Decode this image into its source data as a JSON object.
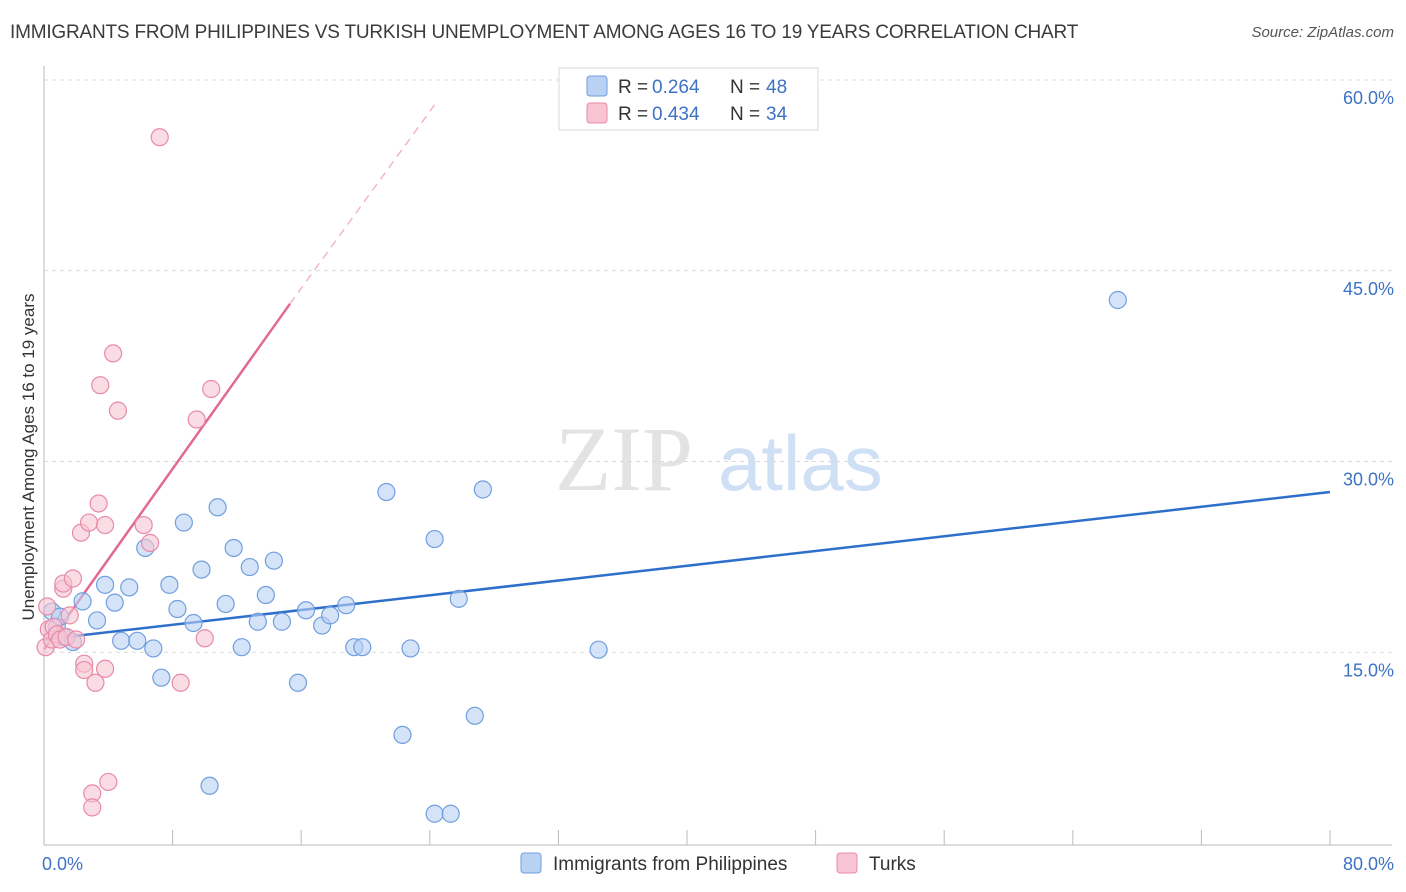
{
  "header": {
    "title": "IMMIGRANTS FROM PHILIPPINES VS TURKISH UNEMPLOYMENT AMONG AGES 16 TO 19 YEARS CORRELATION CHART",
    "source": "Source: ZipAtlas.com"
  },
  "watermark": {
    "zip": "ZIP",
    "atlas": "atlas"
  },
  "colors": {
    "blue_fill": "#b9d1f3",
    "blue_stroke": "#6f9fde",
    "blue_line": "#2f6fcc",
    "pink_fill": "#f7c4d3",
    "pink_stroke": "#e88aa8",
    "pink_line": "#e06a93",
    "tick_text": "#3d72c4",
    "grid": "#d9d9d9"
  },
  "chart_data": {
    "type": "scatter",
    "title": "IMMIGRANTS FROM PHILIPPINES VS TURKISH UNEMPLOYMENT AMONG AGES 16 TO 19 YEARS CORRELATION CHART",
    "xlabel": "",
    "ylabel": "Unemployment Among Ages 16 to 19 years",
    "xlim": [
      0,
      80
    ],
    "ylim": [
      0,
      60
    ],
    "x_tick_labels": [
      "0.0%",
      "80.0%"
    ],
    "y_ticks": [
      15,
      30,
      45,
      60
    ],
    "y_tick_labels": [
      "15.0%",
      "30.0%",
      "45.0%",
      "60.0%"
    ],
    "grid": true,
    "legend": {
      "position": "top-center",
      "entries": [
        {
          "r_label": "R =",
          "r_value": "0.264",
          "n_label": "N =",
          "n_value": "48"
        },
        {
          "r_label": "R =",
          "r_value": "0.434",
          "n_label": "N =",
          "n_value": "34"
        }
      ]
    },
    "bottom_legend": [
      "Immigrants from Philippines",
      "Turks"
    ],
    "series": [
      {
        "name": "Immigrants from Philippines",
        "color": "blue",
        "trend": {
          "x0": 0,
          "y0": 16.0,
          "x1": 80,
          "y1": 27.6,
          "dashed_from": null
        },
        "points": [
          [
            0.5,
            18.2
          ],
          [
            0.8,
            17.0
          ],
          [
            1.0,
            17.8
          ],
          [
            1.2,
            16.2
          ],
          [
            1.8,
            15.8
          ],
          [
            2.4,
            19.0
          ],
          [
            3.3,
            17.5
          ],
          [
            3.8,
            20.3
          ],
          [
            4.4,
            18.9
          ],
          [
            4.8,
            15.9
          ],
          [
            5.3,
            20.1
          ],
          [
            5.8,
            15.9
          ],
          [
            6.3,
            23.2
          ],
          [
            6.8,
            15.3
          ],
          [
            7.3,
            13.0
          ],
          [
            7.8,
            20.3
          ],
          [
            8.3,
            18.4
          ],
          [
            8.7,
            25.2
          ],
          [
            9.3,
            17.3
          ],
          [
            9.8,
            21.5
          ],
          [
            10.3,
            4.5
          ],
          [
            10.8,
            26.4
          ],
          [
            11.3,
            18.8
          ],
          [
            11.8,
            23.2
          ],
          [
            12.3,
            15.4
          ],
          [
            12.8,
            21.7
          ],
          [
            13.3,
            17.4
          ],
          [
            13.8,
            19.5
          ],
          [
            14.3,
            22.2
          ],
          [
            14.8,
            17.4
          ],
          [
            15.8,
            12.6
          ],
          [
            16.3,
            18.3
          ],
          [
            17.3,
            17.1
          ],
          [
            17.8,
            17.9
          ],
          [
            18.8,
            18.7
          ],
          [
            19.3,
            15.4
          ],
          [
            19.8,
            15.4
          ],
          [
            21.3,
            27.6
          ],
          [
            22.3,
            8.5
          ],
          [
            22.8,
            15.3
          ],
          [
            24.3,
            23.9
          ],
          [
            24.3,
            2.3
          ],
          [
            25.3,
            2.3
          ],
          [
            25.8,
            19.2
          ],
          [
            26.8,
            10.0
          ],
          [
            27.3,
            27.8
          ],
          [
            34.5,
            15.2
          ],
          [
            66.8,
            42.7
          ]
        ]
      },
      {
        "name": "Turks",
        "color": "pink",
        "trend": {
          "x0": 0,
          "y0": 15.2,
          "x1": 15.3,
          "y1": 42.4,
          "dashed_to": {
            "x": 24.5,
            "y": 58.4
          }
        },
        "points": [
          [
            0.1,
            15.4
          ],
          [
            0.2,
            18.6
          ],
          [
            0.3,
            16.8
          ],
          [
            0.5,
            16.0
          ],
          [
            0.6,
            17.0
          ],
          [
            0.8,
            16.4
          ],
          [
            1.0,
            16.0
          ],
          [
            1.2,
            20.0
          ],
          [
            1.2,
            20.4
          ],
          [
            1.4,
            16.2
          ],
          [
            1.6,
            17.9
          ],
          [
            1.8,
            20.8
          ],
          [
            2.0,
            16.0
          ],
          [
            2.3,
            24.4
          ],
          [
            2.5,
            14.1
          ],
          [
            2.5,
            13.6
          ],
          [
            2.8,
            25.2
          ],
          [
            3.0,
            3.9
          ],
          [
            3.0,
            2.8
          ],
          [
            3.2,
            12.6
          ],
          [
            3.4,
            26.7
          ],
          [
            3.5,
            36.0
          ],
          [
            3.8,
            25.0
          ],
          [
            3.8,
            13.7
          ],
          [
            4.0,
            4.8
          ],
          [
            4.3,
            38.5
          ],
          [
            4.6,
            34.0
          ],
          [
            6.2,
            25.0
          ],
          [
            6.6,
            23.6
          ],
          [
            7.2,
            55.5
          ],
          [
            8.5,
            12.6
          ],
          [
            9.5,
            33.3
          ],
          [
            10.4,
            35.7
          ],
          [
            10.0,
            16.1
          ]
        ]
      }
    ]
  }
}
